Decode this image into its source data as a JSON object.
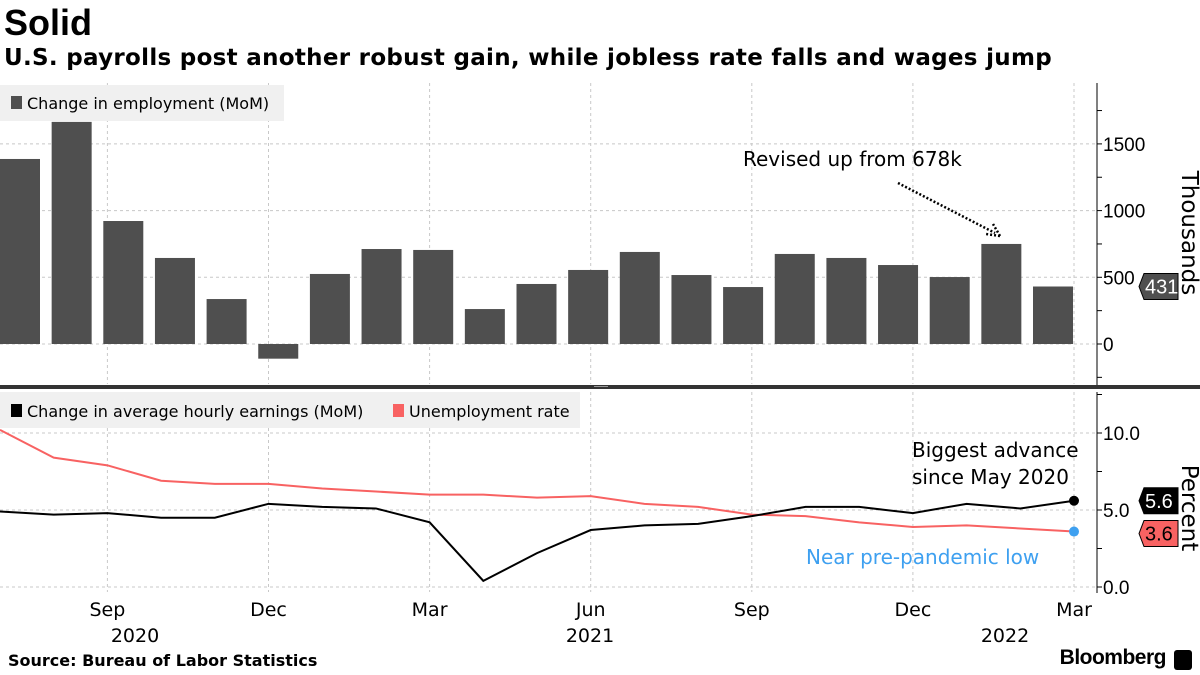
{
  "title": "Solid",
  "subtitle": "U.S. payrolls post another robust gain, while jobless rate falls and wages jump",
  "source": "Source: Bureau of Labor Statistics",
  "brand": "Bloomberg",
  "colors": {
    "bars": "#4f4f4f",
    "earnings": "#000000",
    "unemployment": "#f86262",
    "highlight": "#3ea0f0",
    "legend_bg": "#f0f0f0",
    "grid": "#c8c8c8"
  },
  "x_axis": {
    "month_labels": [
      "Sep",
      "Dec",
      "Mar",
      "Jun",
      "Sep",
      "Dec",
      "Mar"
    ],
    "year_labels": [
      "2020",
      "2021",
      "2022"
    ]
  },
  "chart_data": [
    {
      "type": "bar",
      "legend": [
        "Change in employment (MoM)"
      ],
      "ylabel": "Thousands",
      "categories": [
        "Jul 2020",
        "Aug 2020",
        "Sep 2020",
        "Oct 2020",
        "Nov 2020",
        "Dec 2020",
        "Jan 2021",
        "Feb 2021",
        "Mar 2021",
        "Apr 2021",
        "May 2021",
        "Jun 2021",
        "Jul 2021",
        "Aug 2021",
        "Sep 2021",
        "Oct 2021",
        "Nov 2021",
        "Dec 2021",
        "Jan 2022",
        "Feb 2022",
        "Mar 2022"
      ],
      "series": [
        {
          "name": "Change in employment (MoM)",
          "values": [
            1387,
            1665,
            922,
            645,
            337,
            -110,
            525,
            712,
            705,
            262,
            450,
            555,
            690,
            517,
            427,
            675,
            645,
            592,
            502,
            750,
            431
          ]
        }
      ],
      "ylim": [
        -310,
        1950
      ],
      "yticks": [
        "0",
        "500",
        "1000",
        "1500"
      ],
      "grid": true,
      "legend_position": "top-left",
      "last_value_label": "431",
      "annotation": "Revised up from 678k"
    },
    {
      "type": "line",
      "legend": [
        "Change in average hourly earnings (MoM)",
        "Unemployment rate"
      ],
      "ylabel": "Percent",
      "x": [
        "Jul 2020",
        "Aug 2020",
        "Sep 2020",
        "Oct 2020",
        "Nov 2020",
        "Dec 2020",
        "Jan 2021",
        "Feb 2021",
        "Mar 2021",
        "Apr 2021",
        "May 2021",
        "Jun 2021",
        "Jul 2021",
        "Aug 2021",
        "Sep 2021",
        "Oct 2021",
        "Nov 2021",
        "Dec 2021",
        "Jan 2022",
        "Feb 2022",
        "Mar 2022"
      ],
      "series": [
        {
          "name": "Change in average hourly earnings (MoM)",
          "values": [
            4.9,
            4.7,
            4.8,
            4.5,
            4.5,
            5.4,
            5.2,
            5.1,
            4.2,
            0.4,
            2.2,
            3.7,
            4.0,
            4.1,
            4.6,
            5.2,
            5.2,
            4.8,
            5.4,
            5.1,
            5.6
          ]
        },
        {
          "name": "Unemployment rate",
          "values": [
            10.2,
            8.4,
            7.9,
            6.9,
            6.7,
            6.7,
            6.4,
            6.2,
            6.0,
            6.0,
            5.8,
            5.9,
            5.4,
            5.2,
            4.7,
            4.6,
            4.2,
            3.9,
            4.0,
            3.8,
            3.6
          ]
        }
      ],
      "ylim": [
        -1,
        12.6
      ],
      "yticks": [
        "0.0",
        "5.0",
        "10.0"
      ],
      "grid": true,
      "legend_position": "top-left",
      "last_value_labels": [
        "5.6",
        "3.6"
      ],
      "annotations": [
        "Biggest advance",
        "since May 2020",
        "Near pre-pandemic low"
      ]
    }
  ]
}
